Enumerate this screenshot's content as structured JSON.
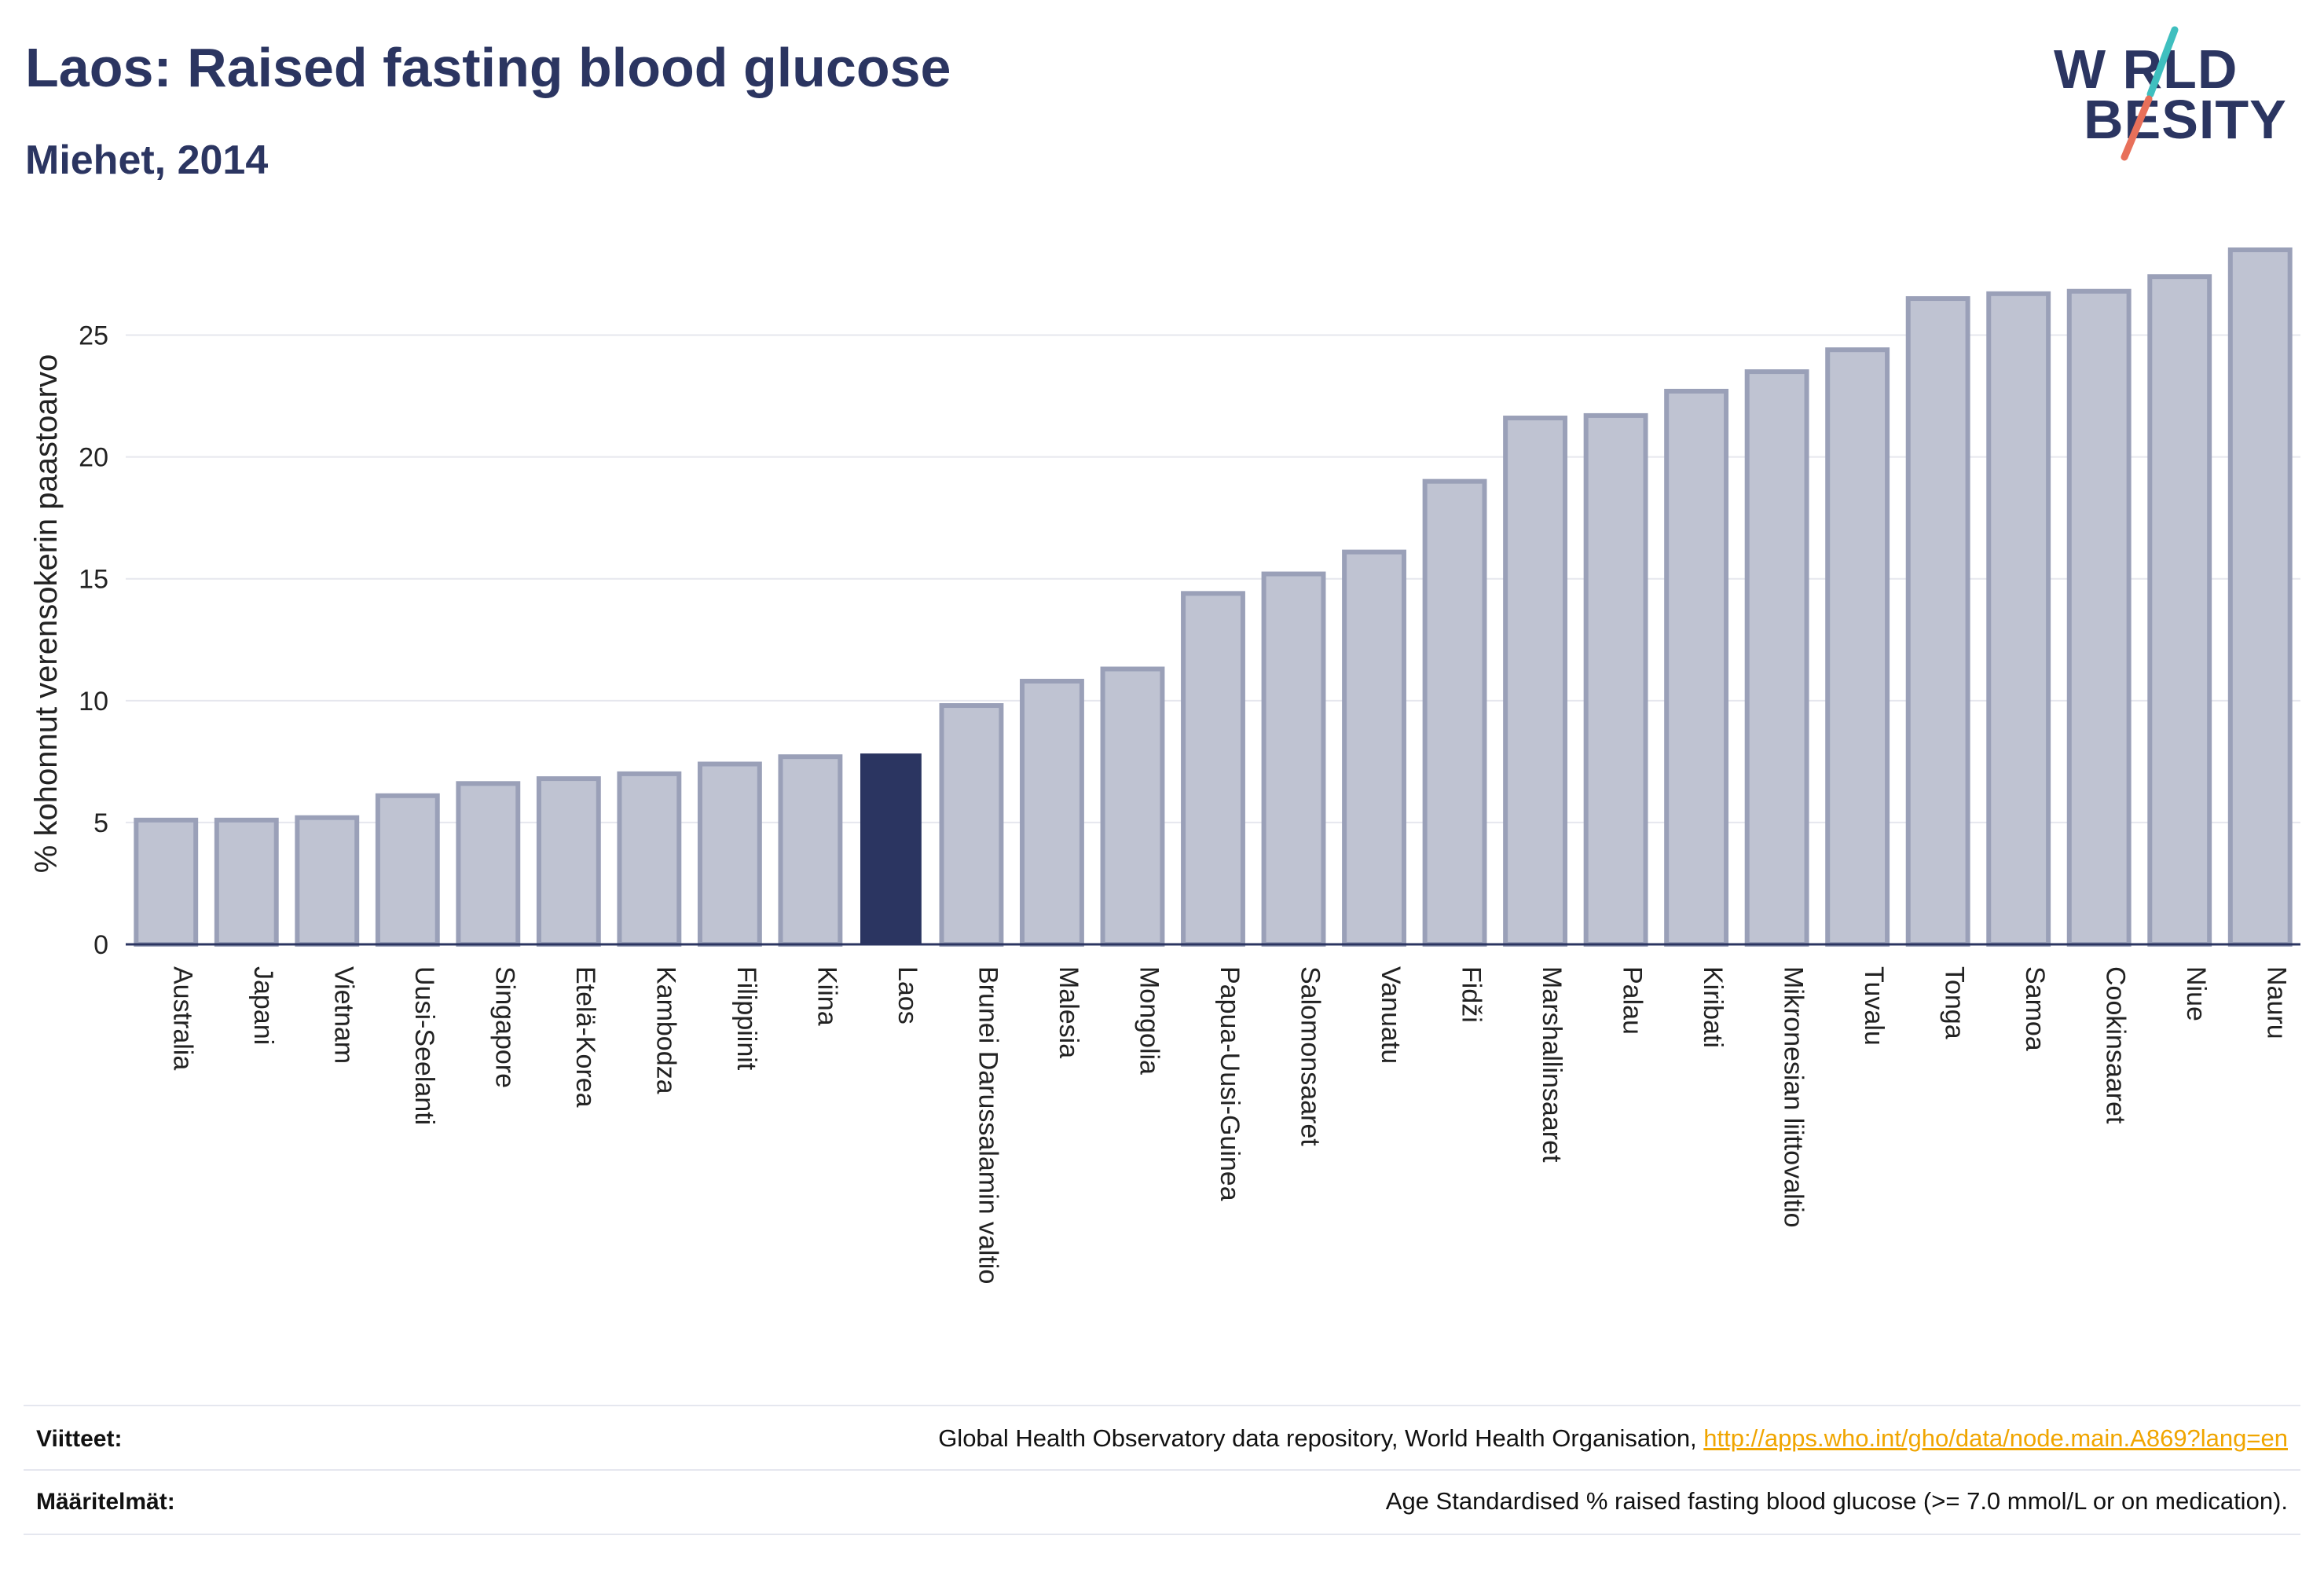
{
  "header": {
    "title": "Laos: Raised fasting blood glucose",
    "subtitle": "Miehet, 2014"
  },
  "logo": {
    "line1": "W RLD",
    "line2": "BESITY",
    "slash_colors": [
      "#3fbfbf",
      "#e8705a"
    ]
  },
  "colors": {
    "bar": "#bfc3d2",
    "bar_stroke": "#9aa0b8",
    "highlight": "#2b3561",
    "axis": "#2b3561",
    "grid": "#e6e7ee"
  },
  "chart_data": {
    "type": "bar",
    "ylabel": "% kohonnut verensokerin paastoarvo",
    "xlabel": "",
    "ylim": [
      0,
      28.5
    ],
    "yticks": [
      0,
      5,
      10,
      15,
      20,
      25
    ],
    "grid": true,
    "highlight": "Laos",
    "categories": [
      "Australia",
      "Japani",
      "Vietnam",
      "Uusi-Seelanti",
      "Singapore",
      "Etelä-Korea",
      "Kambodza",
      "Filippiinit",
      "Kiina",
      "Laos",
      "Brunei Darussalamin valtio",
      "Malesia",
      "Mongolia",
      "Papua-Uusi-Guinea",
      "Salomonsaaret",
      "Vanuatu",
      "Fidži",
      "Marshallinsaaret",
      "Palau",
      "Kiribati",
      "Mikronesian liittovaltio",
      "Tuvalu",
      "Tonga",
      "Samoa",
      "Cookinsaaret",
      "Niue",
      "Nauru"
    ],
    "values": [
      5.1,
      5.1,
      5.2,
      6.1,
      6.6,
      6.8,
      7.0,
      7.4,
      7.7,
      7.8,
      9.8,
      10.8,
      11.3,
      14.4,
      15.2,
      16.1,
      19.0,
      21.6,
      21.7,
      22.7,
      23.5,
      24.4,
      26.5,
      26.7,
      26.8,
      27.4,
      28.5
    ]
  },
  "footer": {
    "sources_label": "Viitteet:",
    "sources_text": "Global Health Observatory data repository, World Health Organisation, ",
    "sources_link": "http://apps.who.int/gho/data/node.main.A869?lang=en",
    "definitions_label": "Määritelmät:",
    "definitions_text": "Age Standardised % raised fasting blood glucose (>= 7.0 mmol/L or on medication)."
  }
}
